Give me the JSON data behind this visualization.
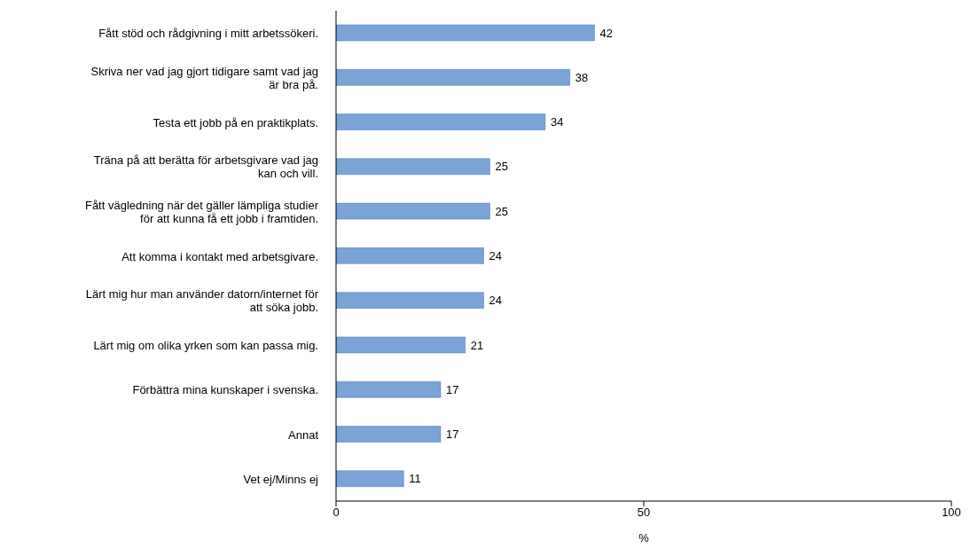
{
  "chart_data": {
    "type": "bar",
    "orientation": "horizontal",
    "xlabel": "%",
    "categories": [
      "Fått stöd och rådgivning i mitt arbetssökeri.",
      "Skriva ner vad jag gjort tidigare samt vad jag är bra på.",
      "Testa ett jobb på en praktikplats.",
      "Träna på att berätta för arbetsgivare vad jag kan och vill.",
      "Fått vägledning när det gäller lämpliga studier för att kunna få ett jobb i framtiden.",
      "Att komma i kontakt med arbetsgivare.",
      "Lärt mig hur man använder datorn/internet för att söka jobb.",
      "Lärt mig om olika yrken som kan passa mig.",
      "Förbättra mina kunskaper i svenska.",
      "Annat",
      "Vet ej/Minns ej"
    ],
    "values": [
      42,
      38,
      34,
      25,
      25,
      24,
      24,
      21,
      17,
      17,
      11
    ],
    "color": "#7ba3d6",
    "xlim": [
      0,
      100
    ],
    "xticks": [
      0,
      50,
      100
    ],
    "grid": false,
    "legend": false,
    "data_labels": true
  }
}
